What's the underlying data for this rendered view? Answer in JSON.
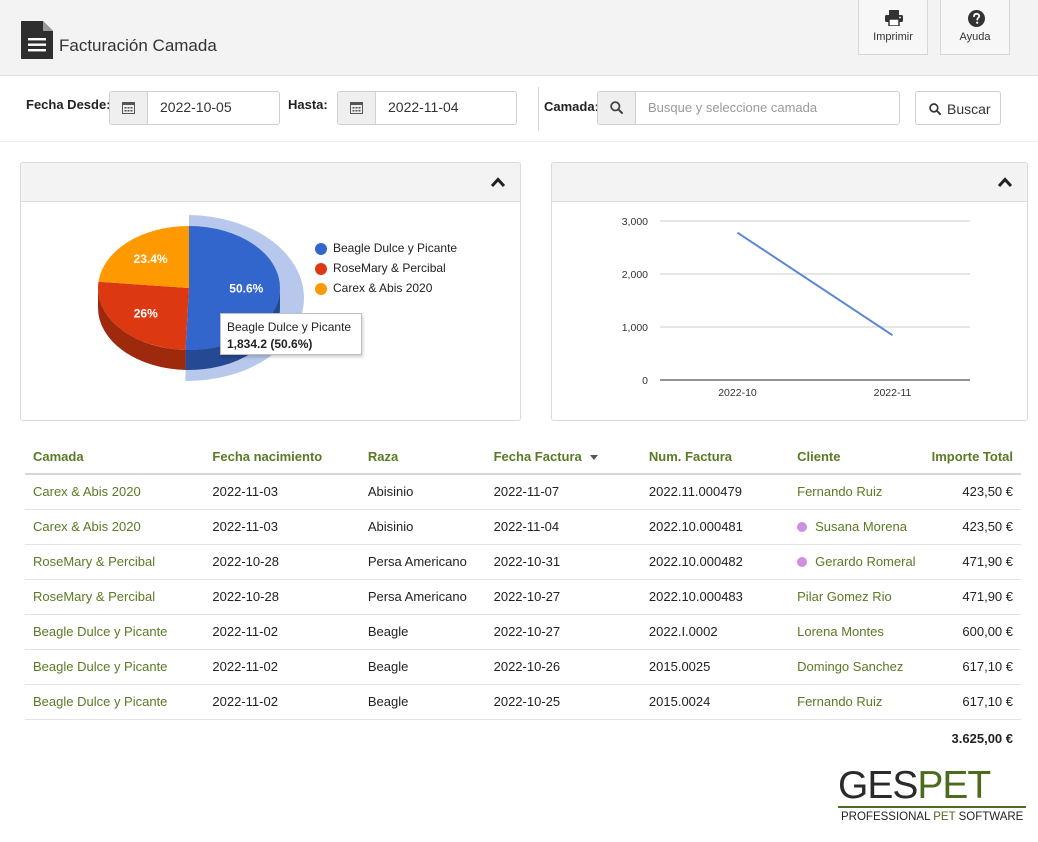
{
  "header": {
    "title": "Facturación Camada",
    "print_label": "Imprimir",
    "help_label": "Ayuda"
  },
  "filters": {
    "from_label": "Fecha Desde:",
    "from_value": "2022-10-05",
    "to_label": "Hasta:",
    "to_value": "2022-11-04",
    "litter_label": "Camada:",
    "litter_placeholder": "Busque y seleccione camada",
    "search_button": "Buscar"
  },
  "pie_chart": {
    "legend": [
      {
        "label": "Beagle Dulce y Picante",
        "color": "#3366cc"
      },
      {
        "label": "RoseMary &  Percibal",
        "color": "#dc3912"
      },
      {
        "label": "Carex & Abis 2020",
        "color": "#ff9900"
      }
    ],
    "tooltip": {
      "title": "Beagle Dulce y Picante",
      "value": "1,834.2 (50.6%)"
    }
  },
  "chart_data": [
    {
      "type": "pie",
      "categories": [
        "Beagle Dulce y Picante",
        "RoseMary &  Percibal",
        "Carex & Abis 2020"
      ],
      "values": [
        50.6,
        26,
        23.4
      ],
      "labels": [
        "50.6%",
        "26%",
        "23.4%"
      ],
      "colors": [
        "#3366cc",
        "#dc3912",
        "#ff9900"
      ],
      "legend_position": "right",
      "title": ""
    },
    {
      "type": "line",
      "categories": [
        "2022-10",
        "2022-11"
      ],
      "series": [
        {
          "values": [
            2780.2,
            844.8
          ],
          "color": "#5b87d6"
        }
      ],
      "ylim": [
        0,
        3000
      ],
      "yticks": [
        "0",
        "1,000",
        "2,000",
        "3,000"
      ],
      "grid": true,
      "title": "",
      "xlabel": "",
      "ylabel": ""
    }
  ],
  "table": {
    "headers": [
      "Camada",
      "Fecha nacimiento",
      "Raza",
      "Fecha Factura",
      "Num. Factura",
      "Cliente",
      "Importe Total"
    ],
    "rows": [
      {
        "camada": "Carex & Abis 2020",
        "nacimiento": "2022-11-03",
        "raza": "Abisinio",
        "factura": "2022-11-07",
        "num": "2022.11.000479",
        "cliente": "Fernando Ruiz",
        "importe": "423,50 €"
      },
      {
        "camada": "Carex & Abis 2020",
        "nacimiento": "2022-11-03",
        "raza": "Abisinio",
        "factura": "2022-11-04",
        "num": "2022.10.000481",
        "cliente": "Susana Morena",
        "importe": "423,50 €"
      },
      {
        "camada": "RoseMary & Percibal",
        "nacimiento": "2022-10-28",
        "raza": "Persa Americano",
        "factura": "2022-10-31",
        "num": "2022.10.000482",
        "cliente": "Gerardo Romeral",
        "importe": "471,90 €"
      },
      {
        "camada": "RoseMary & Percibal",
        "nacimiento": "2022-10-28",
        "raza": "Persa Americano",
        "factura": "2022-10-27",
        "num": "2022.10.000483",
        "cliente": "Pilar Gomez Rio",
        "importe": "471,90 €"
      },
      {
        "camada": "Beagle Dulce y Picante",
        "nacimiento": "2022-11-02",
        "raza": "Beagle",
        "factura": "2022-10-27",
        "num": "2022.I.0002",
        "cliente": "Lorena Montes",
        "importe": "600,00 €"
      },
      {
        "camada": "Beagle Dulce y Picante",
        "nacimiento": "2022-11-02",
        "raza": "Beagle",
        "factura": "2022-10-26",
        "num": "2015.0025",
        "cliente": "Domingo Sanchez",
        "importe": "617,10 €"
      },
      {
        "camada": "Beagle Dulce y Picante",
        "nacimiento": "2022-11-02",
        "raza": "Beagle",
        "factura": "2022-10-25",
        "num": "2015.0024",
        "cliente": "Fernando Ruiz",
        "importe": "617,10 €"
      }
    ],
    "total": "3.625,00 €",
    "client_dot_color": "#d08ee0"
  },
  "logo": {
    "brand_part1": "GES",
    "brand_part2": "PET",
    "tagline_part1": "PROFESSIONAL ",
    "tagline_part2": "PET",
    "tagline_part3": " SOFTWARE"
  },
  "icons": [
    "document-icon",
    "printer-icon",
    "question-circle-icon",
    "calendar-icon",
    "search-icon",
    "chevron-up-icon"
  ]
}
